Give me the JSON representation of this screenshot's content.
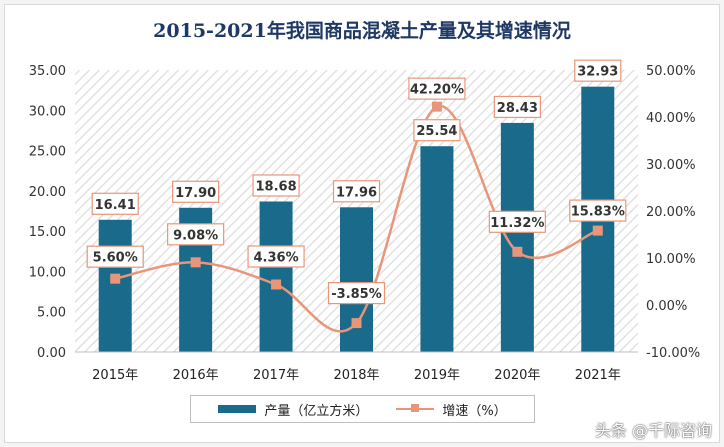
{
  "chart_data": {
    "type": "bar",
    "title": "2015-2021年我国商品混凝土产量及其增速情况",
    "categories": [
      "2015年",
      "2016年",
      "2017年",
      "2018年",
      "2019年",
      "2020年",
      "2021年"
    ],
    "series": [
      {
        "name": "产量（亿立方米）",
        "type": "bar",
        "axis": "left",
        "values": [
          16.41,
          17.9,
          18.68,
          17.96,
          25.54,
          28.43,
          32.93
        ],
        "labels": [
          "16.41",
          "17.90",
          "18.68",
          "17.96",
          "25.54",
          "28.43",
          "32.93"
        ],
        "color": "#1a6a8c"
      },
      {
        "name": "增速（%）",
        "type": "line",
        "axis": "right",
        "values": [
          5.6,
          9.08,
          4.36,
          -3.85,
          42.2,
          11.32,
          15.83
        ],
        "labels": [
          "5.60%",
          "9.08%",
          "4.36%",
          "-3.85%",
          "42.20%",
          "11.32%",
          "15.83%"
        ],
        "color": "#e9957a"
      }
    ],
    "y_left": {
      "range": [
        0,
        35
      ],
      "ticks": [
        "0.00",
        "5.00",
        "10.00",
        "15.00",
        "20.00",
        "25.00",
        "30.00",
        "35.00"
      ]
    },
    "y_right": {
      "range": [
        -10,
        50
      ],
      "ticks": [
        "-10.00%",
        "0.00%",
        "10.00%",
        "20.00%",
        "30.00%",
        "40.00%",
        "50.00%"
      ]
    },
    "grid": false,
    "legend": "bottom",
    "title_color": "#1f3864",
    "label_border_color": "#e9957a"
  },
  "watermark": "头条 @千际咨询"
}
